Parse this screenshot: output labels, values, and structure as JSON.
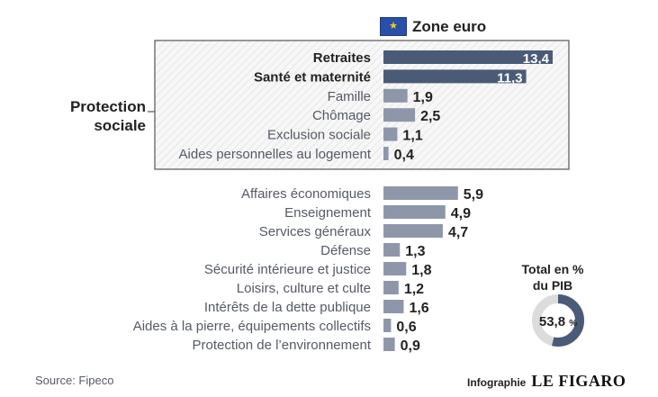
{
  "legend": {
    "label": "Zone euro",
    "icon": "eu-flag-icon"
  },
  "group": {
    "line1": "Protection",
    "line2": "sociale"
  },
  "side": {
    "title_line1": "Total en %",
    "title_line2": "du PIB",
    "total_value": "53,8",
    "total_unit": "%"
  },
  "footer": {
    "source": "Source: Fipeco",
    "credit_prefix": "Infographie",
    "credit_brand": "LE FIGARO"
  },
  "colors": {
    "highlight_bar": "#4a5b78",
    "regular_bar": "#8e97aa",
    "donut_fill": "#4a5b78",
    "donut_track": "#dcdcdc",
    "box_border": "#555555",
    "hatch": "#e6e6e6"
  },
  "chart_data": {
    "type": "bar",
    "orientation": "horizontal",
    "unit": "% du PIB",
    "groups": [
      {
        "name": "Protection sociale",
        "items": [
          {
            "category": "Retraites",
            "value": 13.4,
            "label": "13,4",
            "highlight": true
          },
          {
            "category": "Santé et maternité",
            "value": 11.3,
            "label": "11,3",
            "highlight": true
          },
          {
            "category": "Famille",
            "value": 1.9,
            "label": "1,9",
            "highlight": false
          },
          {
            "category": "Chômage",
            "value": 2.5,
            "label": "2,5",
            "highlight": false
          },
          {
            "category": "Exclusion sociale",
            "value": 1.1,
            "label": "1,1",
            "highlight": false
          },
          {
            "category": "Aides personnelles au logement",
            "value": 0.4,
            "label": "0,4",
            "highlight": false
          }
        ]
      },
      {
        "name": "",
        "items": [
          {
            "category": "Affaires économiques",
            "value": 5.9,
            "label": "5,9",
            "highlight": false
          },
          {
            "category": "Enseignement",
            "value": 4.9,
            "label": "4,9",
            "highlight": false
          },
          {
            "category": "Services généraux",
            "value": 4.7,
            "label": "4,7",
            "highlight": false
          },
          {
            "category": "Défense",
            "value": 1.3,
            "label": "1,3",
            "highlight": false
          },
          {
            "category": "Sécurité intérieure et justice",
            "value": 1.8,
            "label": "1,8",
            "highlight": false
          },
          {
            "category": "Loisirs, culture et culte",
            "value": 1.2,
            "label": "1,2",
            "highlight": false
          },
          {
            "category": "Intérêts de la dette publique",
            "value": 1.6,
            "label": "1,6",
            "highlight": false
          },
          {
            "category": "Aides à la pierre, équipements collectifs",
            "value": 0.6,
            "label": "0,6",
            "highlight": false
          },
          {
            "category": "Protection de l’environnement",
            "value": 0.9,
            "label": "0,9",
            "highlight": false
          }
        ]
      }
    ],
    "total": {
      "value": 53.8,
      "label": "53,8 %"
    }
  }
}
